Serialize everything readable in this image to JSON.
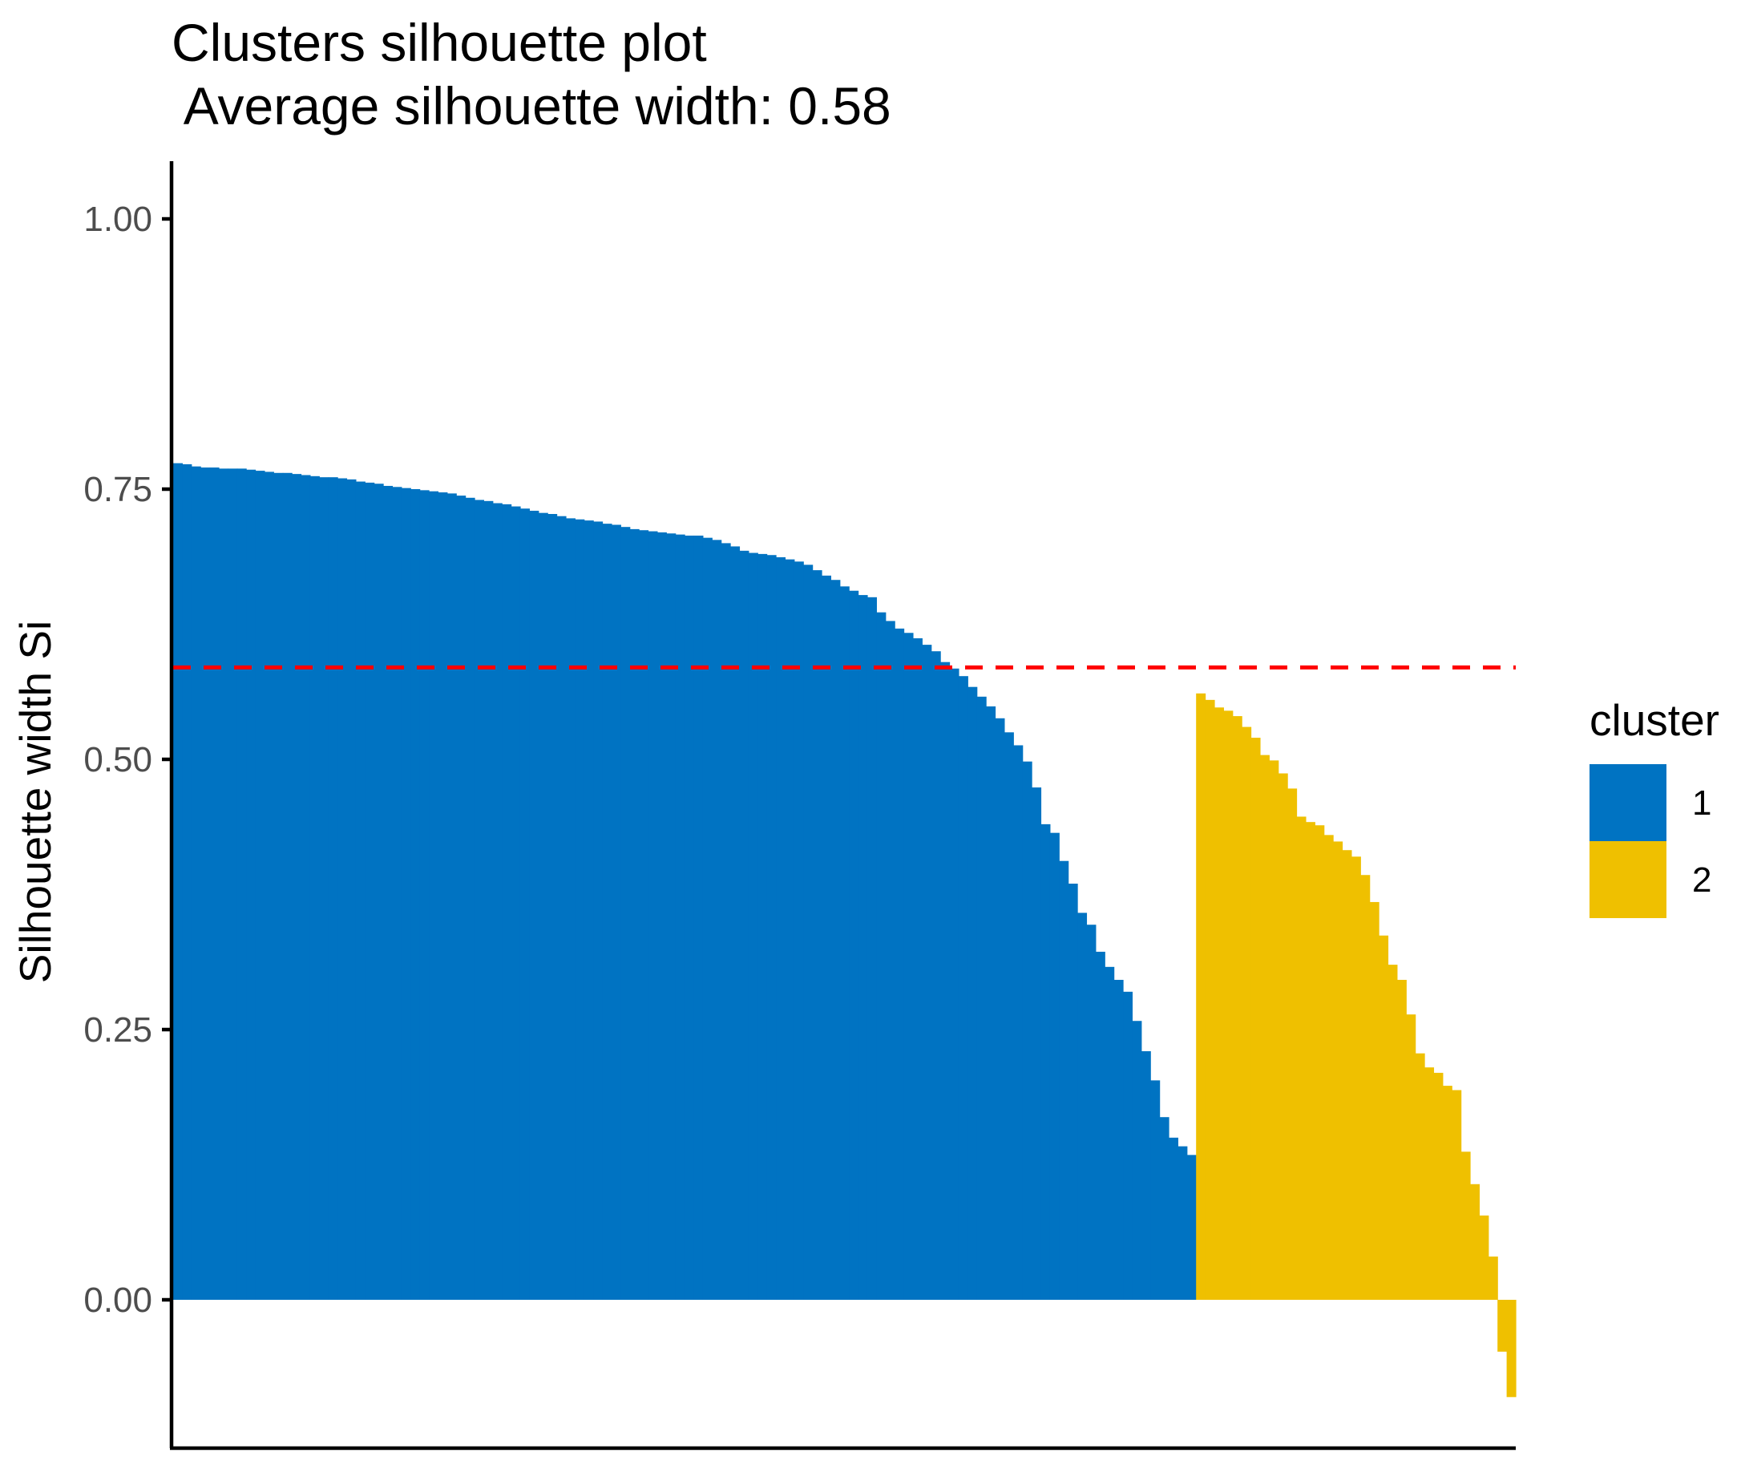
{
  "chart_data": {
    "type": "bar",
    "title": "Clusters silhouette plot",
    "subtitle": " Average silhouette width: 0.58",
    "xlabel": "",
    "ylabel": "Silhouette width Si",
    "ylim": [
      -0.14,
      1.05
    ],
    "yticks": [
      "0.00",
      "0.25",
      "0.50",
      "0.75",
      "1.00"
    ],
    "ytick_values": [
      0,
      0.25,
      0.5,
      0.75,
      1.0
    ],
    "average_line": {
      "value": 0.585,
      "color": "#ff0000",
      "style": "dashed"
    },
    "grid": false,
    "legend": {
      "title": "cluster",
      "placement": "right"
    },
    "series": [
      {
        "name": "1",
        "color": "#0073c2",
        "values": [
          0.774,
          0.773,
          0.771,
          0.77,
          0.77,
          0.769,
          0.769,
          0.769,
          0.768,
          0.767,
          0.766,
          0.765,
          0.765,
          0.764,
          0.763,
          0.762,
          0.761,
          0.761,
          0.76,
          0.759,
          0.757,
          0.756,
          0.755,
          0.753,
          0.752,
          0.751,
          0.75,
          0.749,
          0.748,
          0.747,
          0.746,
          0.744,
          0.742,
          0.74,
          0.739,
          0.737,
          0.736,
          0.734,
          0.732,
          0.73,
          0.728,
          0.727,
          0.725,
          0.723,
          0.722,
          0.721,
          0.72,
          0.718,
          0.717,
          0.715,
          0.713,
          0.712,
          0.711,
          0.71,
          0.709,
          0.708,
          0.707,
          0.707,
          0.705,
          0.703,
          0.7,
          0.697,
          0.693,
          0.691,
          0.69,
          0.689,
          0.687,
          0.685,
          0.683,
          0.68,
          0.675,
          0.67,
          0.666,
          0.66,
          0.656,
          0.652,
          0.65,
          0.636,
          0.628,
          0.621,
          0.617,
          0.612,
          0.606,
          0.6,
          0.59,
          0.584,
          0.577,
          0.567,
          0.558,
          0.549,
          0.538,
          0.525,
          0.513,
          0.498,
          0.474,
          0.44,
          0.432,
          0.406,
          0.385,
          0.358,
          0.347,
          0.322,
          0.308,
          0.296,
          0.285,
          0.258,
          0.23,
          0.203,
          0.169,
          0.15,
          0.142,
          0.134
        ]
      },
      {
        "name": "2",
        "color": "#efc000",
        "values": [
          0.561,
          0.555,
          0.548,
          0.545,
          0.54,
          0.53,
          0.52,
          0.504,
          0.499,
          0.487,
          0.473,
          0.447,
          0.442,
          0.439,
          0.43,
          0.424,
          0.416,
          0.41,
          0.393,
          0.368,
          0.337,
          0.31,
          0.296,
          0.264,
          0.228,
          0.215,
          0.21,
          0.198,
          0.194,
          0.137,
          0.107,
          0.078,
          0.04,
          -0.048,
          -0.09
        ]
      }
    ]
  }
}
